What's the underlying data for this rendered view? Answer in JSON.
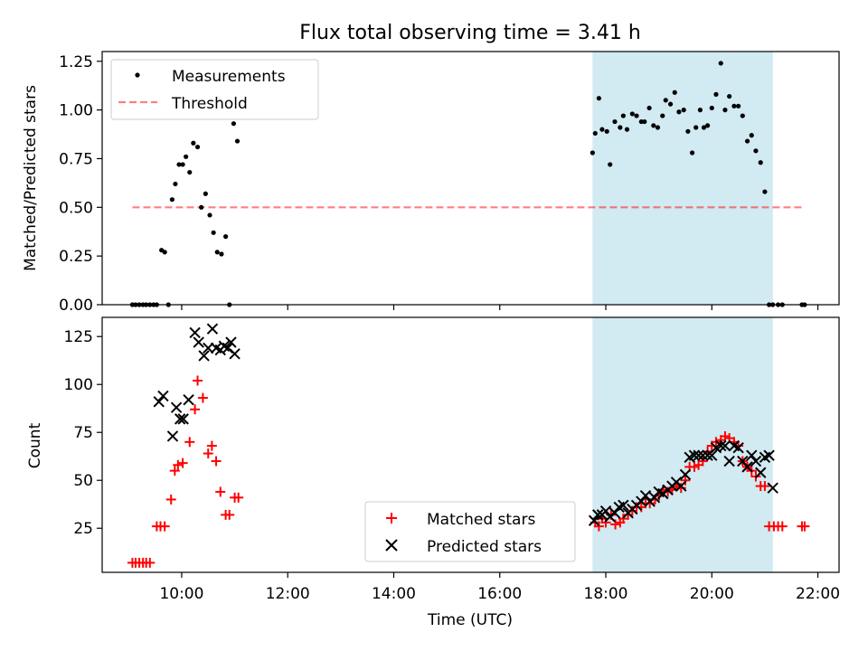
{
  "title": "Flux total observing time = 3.41 h",
  "colors": {
    "band": "#add8e6",
    "threshold": "#ff0000",
    "matched": "#ff0000",
    "predicted": "#000000",
    "measurement": "#000000"
  },
  "chart_data": [
    {
      "type": "scatter",
      "ylabel": "Matched/Predicted stars",
      "xlim": [
        8.5,
        22.4
      ],
      "ylim": [
        0.0,
        1.3
      ],
      "yticks": [
        0.0,
        0.25,
        0.5,
        0.75,
        1.0,
        1.25
      ],
      "ytick_labels": [
        "0.00",
        "0.25",
        "0.50",
        "0.75",
        "1.00",
        "1.25"
      ],
      "shaded_interval": [
        17.75,
        21.15
      ],
      "legend": {
        "position": "upper-left",
        "entries": [
          "Measurements",
          "Threshold"
        ]
      },
      "series": [
        {
          "name": "Measurements",
          "marker": "dot",
          "x": [
            9.07,
            9.13,
            9.2,
            9.27,
            9.33,
            9.4,
            9.47,
            9.53,
            9.62,
            9.68,
            9.75,
            9.82,
            9.88,
            9.95,
            10.02,
            10.08,
            10.15,
            10.22,
            10.3,
            10.37,
            10.45,
            10.53,
            10.6,
            10.67,
            10.75,
            10.83,
            10.9,
            10.98,
            11.05,
            17.75,
            17.8,
            17.87,
            17.93,
            18.02,
            18.08,
            18.17,
            18.27,
            18.33,
            18.4,
            18.5,
            18.58,
            18.67,
            18.73,
            18.82,
            18.9,
            18.98,
            19.07,
            19.13,
            19.22,
            19.3,
            19.38,
            19.47,
            19.55,
            19.63,
            19.7,
            19.78,
            19.85,
            19.92,
            20.0,
            20.08,
            20.17,
            20.25,
            20.33,
            20.42,
            20.5,
            20.58,
            20.67,
            20.75,
            20.83,
            20.92,
            21.0,
            21.08,
            21.15,
            21.25,
            21.33,
            21.7,
            21.75
          ],
          "y": [
            0.0,
            0.0,
            0.0,
            0.0,
            0.0,
            0.0,
            0.0,
            0.0,
            0.28,
            0.27,
            0.0,
            0.54,
            0.62,
            0.72,
            0.72,
            0.76,
            0.68,
            0.83,
            0.81,
            0.5,
            0.57,
            0.46,
            0.37,
            0.27,
            0.26,
            0.35,
            0.0,
            0.93,
            0.84,
            0.78,
            0.88,
            1.06,
            0.9,
            0.89,
            0.72,
            0.94,
            0.91,
            0.97,
            0.9,
            0.98,
            0.97,
            0.94,
            0.94,
            1.01,
            0.92,
            0.91,
            0.97,
            1.05,
            1.03,
            1.09,
            0.99,
            1.0,
            0.89,
            0.78,
            0.91,
            1.0,
            0.91,
            0.92,
            1.01,
            1.08,
            1.24,
            1.0,
            1.07,
            1.02,
            1.02,
            0.97,
            0.84,
            0.87,
            0.79,
            0.73,
            0.58,
            0.0,
            0.0,
            0.0,
            0.0,
            0.0,
            0.0
          ],
          "x_note": "x values are hours UTC"
        },
        {
          "name": "Threshold",
          "marker": "dashed-line",
          "x": [
            9.07,
            21.75
          ],
          "y": [
            0.5,
            0.5
          ]
        }
      ]
    },
    {
      "type": "scatter",
      "ylabel": "Count",
      "xlabel": "Time (UTC)",
      "xlim": [
        8.5,
        22.4
      ],
      "ylim": [
        2,
        135
      ],
      "yticks": [
        25,
        50,
        75,
        100,
        125
      ],
      "ytick_labels": [
        "25",
        "50",
        "75",
        "100",
        "125"
      ],
      "xticks": [
        10,
        12,
        14,
        16,
        18,
        20,
        22
      ],
      "xtick_labels": [
        "10:00",
        "12:00",
        "14:00",
        "16:00",
        "18:00",
        "20:00",
        "22:00"
      ],
      "shaded_interval": [
        17.75,
        21.15
      ],
      "legend": {
        "position": "lower-center",
        "entries": [
          "Matched stars",
          "Predicted stars"
        ]
      },
      "series": [
        {
          "name": "Matched stars",
          "marker": "plus",
          "x": [
            9.07,
            9.13,
            9.2,
            9.27,
            9.33,
            9.4,
            9.53,
            9.6,
            9.68,
            9.8,
            9.87,
            9.93,
            10.02,
            10.15,
            10.25,
            10.3,
            10.4,
            10.5,
            10.57,
            10.65,
            10.73,
            10.83,
            10.9,
            11.0,
            11.07,
            17.8,
            17.87,
            17.93,
            18.0,
            18.1,
            18.18,
            18.27,
            18.33,
            18.42,
            18.5,
            18.58,
            18.67,
            18.75,
            18.83,
            18.93,
            19.0,
            19.08,
            19.17,
            19.25,
            19.33,
            19.42,
            19.5,
            19.58,
            19.67,
            19.75,
            19.83,
            19.92,
            20.0,
            20.08,
            20.17,
            20.25,
            20.33,
            20.42,
            20.5,
            20.58,
            20.67,
            20.75,
            20.83,
            20.92,
            21.0,
            21.08,
            21.17,
            21.25,
            21.33,
            21.7,
            21.75
          ],
          "y": [
            7,
            7,
            7,
            7,
            7,
            7,
            26,
            26,
            26,
            40,
            55,
            58,
            59,
            70,
            87,
            102,
            93,
            64,
            68,
            60,
            44,
            32,
            32,
            41,
            41,
            28,
            26,
            30,
            28,
            32,
            27,
            28,
            30,
            32,
            34,
            36,
            36,
            38,
            38,
            40,
            42,
            45,
            44,
            45,
            47,
            46,
            50,
            57,
            57,
            58,
            60,
            65,
            68,
            70,
            71,
            73,
            72,
            70,
            68,
            60,
            57,
            55,
            52,
            47,
            47,
            26,
            26,
            26,
            26,
            26,
            26
          ]
        },
        {
          "name": "Predicted stars",
          "marker": "x",
          "x": [
            9.57,
            9.65,
            9.83,
            9.9,
            9.97,
            10.03,
            10.13,
            10.25,
            10.32,
            10.42,
            10.5,
            10.58,
            10.65,
            10.73,
            10.8,
            10.87,
            10.93,
            11.0,
            17.78,
            17.85,
            17.93,
            18.0,
            18.08,
            18.17,
            18.25,
            18.33,
            18.42,
            18.5,
            18.58,
            18.67,
            18.75,
            18.83,
            18.92,
            19.0,
            19.08,
            19.17,
            19.25,
            19.33,
            19.42,
            19.5,
            19.58,
            19.67,
            19.75,
            19.83,
            19.92,
            20.0,
            20.08,
            20.17,
            20.25,
            20.33,
            20.42,
            20.5,
            20.58,
            20.67,
            20.75,
            20.83,
            20.92,
            21.0,
            21.08,
            21.15
          ],
          "y": [
            91,
            94,
            73,
            88,
            82,
            82,
            92,
            127,
            122,
            115,
            119,
            129,
            119,
            118,
            120,
            119,
            122,
            116,
            29,
            32,
            32,
            34,
            31,
            33,
            36,
            37,
            33,
            35,
            37,
            39,
            42,
            39,
            41,
            44,
            43,
            45,
            47,
            49,
            47,
            53,
            62,
            63,
            63,
            63,
            63,
            63,
            67,
            68,
            68,
            60,
            68,
            67,
            60,
            57,
            63,
            60,
            54,
            62,
            63,
            46
          ]
        }
      ]
    }
  ]
}
